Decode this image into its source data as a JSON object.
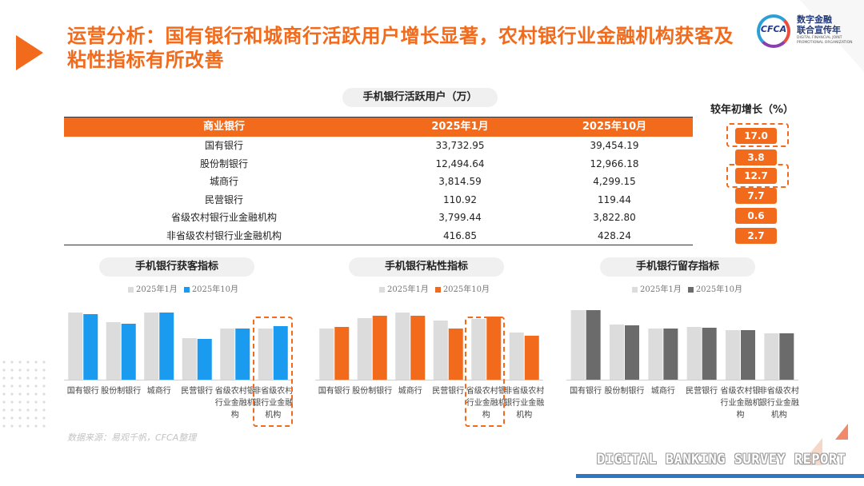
{
  "title": "运营分析：国有银行和城商行活跃用户增长显著，农村银行业金融机构获客及粘性指标有所改善",
  "logo": {
    "mark": "CFCA",
    "cn_line1": "数字金融",
    "cn_line2": "联合宣传年",
    "en": "DIGITAL FINANCIAL JOINT PROMOTIONAL ORGANIZATION"
  },
  "table": {
    "title": "手机银行活跃用户（万）",
    "headers": [
      "商业银行",
      "2025年1月",
      "2025年10月"
    ],
    "rows": [
      {
        "name": "国有银行",
        "jan": "33,732.95",
        "oct": "39,454.19"
      },
      {
        "name": "股份制银行",
        "jan": "12,494.64",
        "oct": "12,966.18"
      },
      {
        "name": "城商行",
        "jan": "3,814.59",
        "oct": "4,299.15"
      },
      {
        "name": "民营银行",
        "jan": "110.92",
        "oct": "119.44"
      },
      {
        "name": "省级农村银行业金融机构",
        "jan": "3,799.44",
        "oct": "3,822.80"
      },
      {
        "name": "非省级农村银行业金融机构",
        "jan": "416.85",
        "oct": "428.24"
      }
    ]
  },
  "growth": {
    "title": "较年初增长（%）",
    "values": [
      "17.0",
      "3.8",
      "12.7",
      "7.7",
      "0.6",
      "2.7"
    ]
  },
  "colors": {
    "accent": "#f26a1b",
    "blue": "#1a9bf0",
    "dark_gray": "#6b6b6b",
    "light_gray": "#dcdcdc"
  },
  "chart_data": [
    {
      "type": "bar",
      "title": "手机银行获客指标",
      "categories": [
        "国有银行",
        "股份制银行",
        "城商行",
        "民营银行",
        "省级农村银行业金融机构",
        "非省级农村银行业金融机构"
      ],
      "series": [
        {
          "name": "2025年1月",
          "values": [
            84,
            72,
            84,
            52,
            64,
            64
          ]
        },
        {
          "name": "2025年10月",
          "values": [
            82,
            70,
            84,
            51,
            64,
            67
          ]
        }
      ],
      "ylim": [
        0,
        100
      ],
      "legend": "top-left",
      "colors": [
        "#dcdcdc",
        "#1a9bf0"
      ]
    },
    {
      "type": "bar",
      "title": "手机银行粘性指标",
      "categories": [
        "国有银行",
        "股份制银行",
        "城商行",
        "民营银行",
        "省级农村银行业金融机构",
        "非省级农村银行业金融机构"
      ],
      "series": [
        {
          "name": "2025年1月",
          "values": [
            64,
            77,
            84,
            74,
            76,
            59
          ]
        },
        {
          "name": "2025年10月",
          "values": [
            66,
            80,
            80,
            64,
            79,
            55
          ]
        }
      ],
      "ylim": [
        0,
        100
      ],
      "legend": "top-left",
      "colors": [
        "#dcdcdc",
        "#f26a1b"
      ]
    },
    {
      "type": "bar",
      "title": "手机银行留存指标",
      "categories": [
        "国有银行",
        "股份制银行",
        "城商行",
        "民营银行",
        "省级农村银行业金融机构",
        "非省级农村银行业金融机构"
      ],
      "series": [
        {
          "name": "2025年1月",
          "values": [
            87,
            69,
            64,
            66,
            62,
            58
          ]
        },
        {
          "name": "2025年10月",
          "values": [
            87,
            68,
            64,
            65,
            62,
            58
          ]
        }
      ],
      "ylim": [
        0,
        100
      ],
      "legend": "top-left",
      "colors": [
        "#dcdcdc",
        "#6b6b6b"
      ]
    }
  ],
  "source": "数据来源：易观千帆，CFCA整理",
  "footer": "DIGITAL BANKING SURVEY REPORT"
}
